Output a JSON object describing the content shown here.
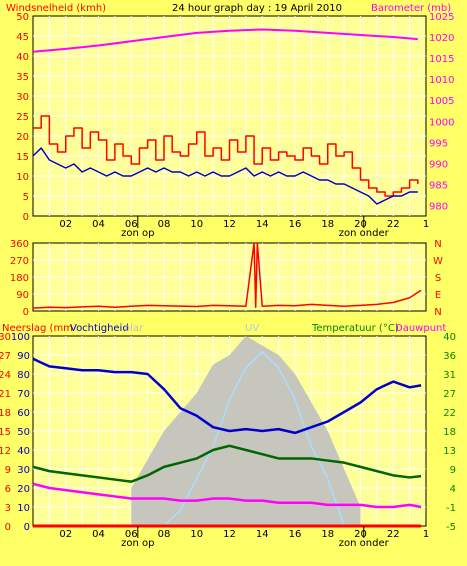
{
  "header": {
    "left": "Windsnelheid (kmh)",
    "title": "24 hour graph day : 19 April 2010",
    "right": "Barometer (mb)"
  },
  "colors": {
    "background": "#ffff66",
    "plot_bg": "#ffff99",
    "grid": "#ffffff",
    "wind": "#ff0000",
    "wind_avg": "#0000cc",
    "barometer": "#ff00ff",
    "temperature": "#006600",
    "dewpoint": "#ff00ff",
    "humidity": "#0000cc",
    "solar": "#c0c0c0",
    "uv": "#aaddff",
    "rain": "#ff0000",
    "left_axis_text": "#ff0000",
    "right_axis_text": "#ff00ff",
    "temp_axis_text": "#008800"
  },
  "time_ticks": [
    "02",
    "04",
    "06",
    "08",
    "10",
    "12",
    "14",
    "16",
    "18",
    "20",
    "22"
  ],
  "sun_labels": {
    "sunrise": "zon op",
    "sunset": "zon onder"
  },
  "chart_data": [
    {
      "type": "line",
      "name": "wind-barometer",
      "x_range": [
        0,
        24
      ],
      "left_axis": {
        "ticks": [
          0,
          5,
          10,
          15,
          20,
          25,
          30,
          35,
          40,
          45,
          50
        ],
        "range": [
          0,
          50
        ]
      },
      "right_axis": {
        "ticks": [
          980,
          985,
          990,
          995,
          1000,
          1005,
          1010,
          1015,
          1020,
          1025
        ],
        "range": [
          977.5,
          1025
        ]
      },
      "series": [
        {
          "name": "Windsnelheid (kmh)",
          "x": [
            0,
            0.5,
            1,
            1.5,
            2,
            2.5,
            3,
            3.5,
            4,
            4.5,
            5,
            5.5,
            6,
            6.5,
            7,
            7.5,
            8,
            8.5,
            9,
            9.5,
            10,
            10.5,
            11,
            11.5,
            12,
            12.5,
            13,
            13.5,
            14,
            14.5,
            15,
            15.5,
            16,
            16.5,
            17,
            17.5,
            18,
            18.5,
            19,
            19.5,
            20,
            20.5,
            21,
            21.5,
            22,
            22.5,
            23,
            23.5
          ],
          "values": [
            22,
            25,
            18,
            16,
            20,
            22,
            17,
            21,
            19,
            14,
            18,
            15,
            13,
            17,
            19,
            14,
            20,
            16,
            15,
            18,
            21,
            15,
            17,
            14,
            19,
            16,
            20,
            13,
            17,
            14,
            16,
            15,
            14,
            17,
            15,
            13,
            18,
            15,
            16,
            12,
            9,
            7,
            6,
            5,
            6,
            7,
            9,
            8
          ]
        },
        {
          "name": "Gemiddelde wind",
          "x": [
            0,
            0.5,
            1,
            1.5,
            2,
            2.5,
            3,
            3.5,
            4,
            4.5,
            5,
            5.5,
            6,
            6.5,
            7,
            7.5,
            8,
            8.5,
            9,
            9.5,
            10,
            10.5,
            11,
            11.5,
            12,
            12.5,
            13,
            13.5,
            14,
            14.5,
            15,
            15.5,
            16,
            16.5,
            17,
            17.5,
            18,
            18.5,
            19,
            19.5,
            20,
            20.5,
            21,
            21.5,
            22,
            22.5,
            23,
            23.5
          ],
          "values": [
            15,
            17,
            14,
            13,
            12,
            13,
            11,
            12,
            11,
            10,
            11,
            10,
            10,
            11,
            12,
            11,
            12,
            11,
            11,
            10,
            11,
            10,
            11,
            10,
            10,
            11,
            12,
            10,
            11,
            10,
            11,
            10,
            10,
            11,
            10,
            9,
            9,
            8,
            8,
            7,
            6,
            5,
            3,
            4,
            5,
            5,
            6,
            6
          ]
        },
        {
          "name": "Barometer (mb)",
          "x": [
            0,
            2,
            4,
            6,
            8,
            10,
            12,
            14,
            16,
            18,
            20,
            22,
            23.5
          ],
          "values": [
            1016.5,
            1017.2,
            1018,
            1019,
            1020,
            1021,
            1021.5,
            1021.8,
            1021.5,
            1021,
            1020.5,
            1020,
            1019.5
          ]
        }
      ]
    },
    {
      "type": "line",
      "name": "wind-direction",
      "x_range": [
        0,
        24
      ],
      "left_axis": {
        "ticks": [
          0,
          90,
          180,
          270,
          360
        ],
        "range": [
          0,
          360
        ]
      },
      "compass_labels": [
        "N",
        "W",
        "S",
        "E",
        "N"
      ],
      "series": [
        {
          "name": "Windrichting",
          "x": [
            0,
            1,
            2,
            3,
            4,
            5,
            6,
            7,
            8,
            9,
            10,
            11,
            12,
            13,
            13.5,
            13.6,
            13.7,
            14,
            15,
            16,
            17,
            18,
            19,
            20,
            21,
            22,
            23,
            23.7
          ],
          "values": [
            15,
            20,
            18,
            22,
            25,
            20,
            25,
            30,
            28,
            26,
            24,
            30,
            28,
            25,
            360,
            20,
            360,
            25,
            30,
            28,
            35,
            30,
            25,
            30,
            35,
            45,
            70,
            110
          ]
        }
      ]
    },
    {
      "type": "line",
      "name": "rain-humidity-temperature",
      "x_range": [
        0,
        24
      ],
      "left_labels": {
        "rain": "Neerslag (mm",
        "humidity": "Vochtigheid",
        "solar": "olar",
        "uv": "UV",
        "temperature": "Temperatuur (°C)",
        "dewpoint": "Dauwpunt"
      },
      "rain_axis": {
        "ticks": [
          0,
          3,
          6,
          9,
          12,
          15,
          18,
          21,
          24,
          27,
          30
        ],
        "range": [
          0,
          30
        ]
      },
      "humidity_axis": {
        "ticks": [
          0,
          10,
          20,
          30,
          40,
          50,
          60,
          70,
          80,
          90,
          100
        ],
        "range": [
          0,
          100
        ]
      },
      "temp_axis": {
        "ticks": [
          -5,
          -1,
          4,
          9,
          13,
          18,
          22,
          27,
          31,
          36,
          40
        ],
        "range": [
          -5,
          40
        ]
      },
      "series": [
        {
          "name": "Vochtigheid",
          "x": [
            0,
            0.5,
            1,
            2,
            3,
            4,
            5,
            6,
            7,
            8,
            9,
            10,
            11,
            12,
            13,
            14,
            15,
            16,
            17,
            18,
            19,
            20,
            21,
            22,
            23,
            23.7
          ],
          "values": [
            88,
            86,
            84,
            83,
            82,
            82,
            81,
            81,
            80,
            72,
            62,
            58,
            52,
            50,
            51,
            50,
            51,
            49,
            52,
            55,
            60,
            65,
            72,
            76,
            73,
            74
          ]
        },
        {
          "name": "Temperatuur (°C)",
          "x": [
            0,
            1,
            2,
            3,
            4,
            5,
            6,
            7,
            8,
            9,
            10,
            11,
            12,
            13,
            14,
            15,
            16,
            17,
            18,
            19,
            20,
            21,
            22,
            23,
            23.7
          ],
          "values": [
            9,
            8,
            7.5,
            7,
            6.5,
            6,
            5.5,
            7,
            9,
            10,
            11,
            13,
            14,
            13,
            12,
            11,
            11,
            11,
            10.5,
            10,
            9,
            8,
            7,
            6.5,
            6.8
          ]
        },
        {
          "name": "Dauwpunt",
          "x": [
            0,
            1,
            2,
            3,
            4,
            5,
            6,
            7,
            8,
            9,
            10,
            11,
            12,
            13,
            14,
            15,
            16,
            17,
            18,
            19,
            20,
            21,
            22,
            23,
            23.7
          ],
          "values": [
            5,
            4,
            3.5,
            3,
            2.5,
            2,
            1.5,
            1.5,
            1.5,
            1,
            1,
            1.5,
            1.5,
            1,
            1,
            0.5,
            0.5,
            0.5,
            0,
            0,
            0,
            -0.5,
            -0.5,
            0,
            -0.5
          ]
        },
        {
          "name": "Solar",
          "x": [
            6,
            7,
            8,
            9,
            10,
            11,
            12,
            13,
            14,
            15,
            16,
            17,
            18,
            19,
            20
          ],
          "values": [
            20,
            35,
            50,
            60,
            70,
            85,
            90,
            100,
            95,
            90,
            80,
            65,
            50,
            30,
            10
          ]
        },
        {
          "name": "UV",
          "x": [
            8,
            9,
            10,
            11,
            12,
            13,
            14,
            15,
            16,
            17,
            18,
            19
          ],
          "values": [
            0,
            1,
            3,
            5,
            8,
            10,
            11,
            10,
            8,
            5,
            3,
            0
          ]
        },
        {
          "name": "Neerslag",
          "x": [
            0,
            23.7
          ],
          "values": [
            0,
            0
          ]
        }
      ]
    }
  ]
}
